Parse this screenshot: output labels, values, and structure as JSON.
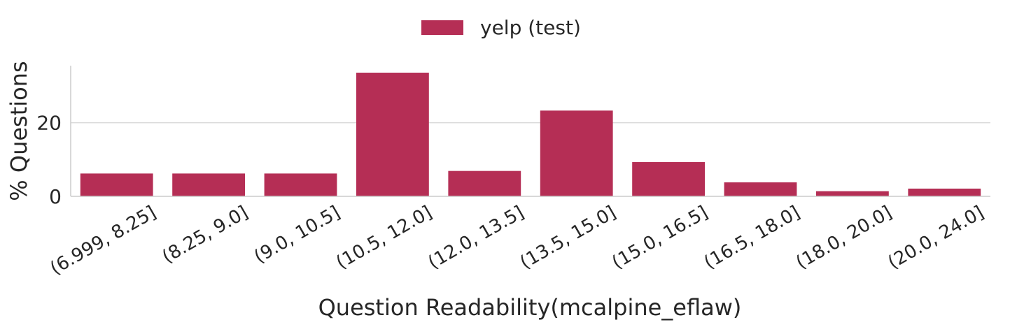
{
  "chart_data": {
    "type": "bar",
    "title": "",
    "xlabel": "Question Readability(mcalpine_eflaw)",
    "ylabel": "% Questions",
    "categories": [
      "(6.999, 8.25]",
      "(8.25, 9.0]",
      "(9.0, 10.5]",
      "(10.5, 12.0]",
      "(12.0, 13.5]",
      "(13.5, 15.0]",
      "(15.0, 16.5]",
      "(16.5, 18.0]",
      "(18.0, 20.0]",
      "(20.0, 24.0]"
    ],
    "series": [
      {
        "name": "yelp (test)",
        "color": "#b52e55",
        "values": [
          6.2,
          6.2,
          6.2,
          33.6,
          6.9,
          23.3,
          9.3,
          3.8,
          1.4,
          2.1
        ]
      }
    ],
    "ylim": [
      0,
      35.5
    ],
    "yticks": [
      0,
      20
    ],
    "grid": "horizontal",
    "legend_position": "top-center",
    "xtick_rotation": 30
  }
}
